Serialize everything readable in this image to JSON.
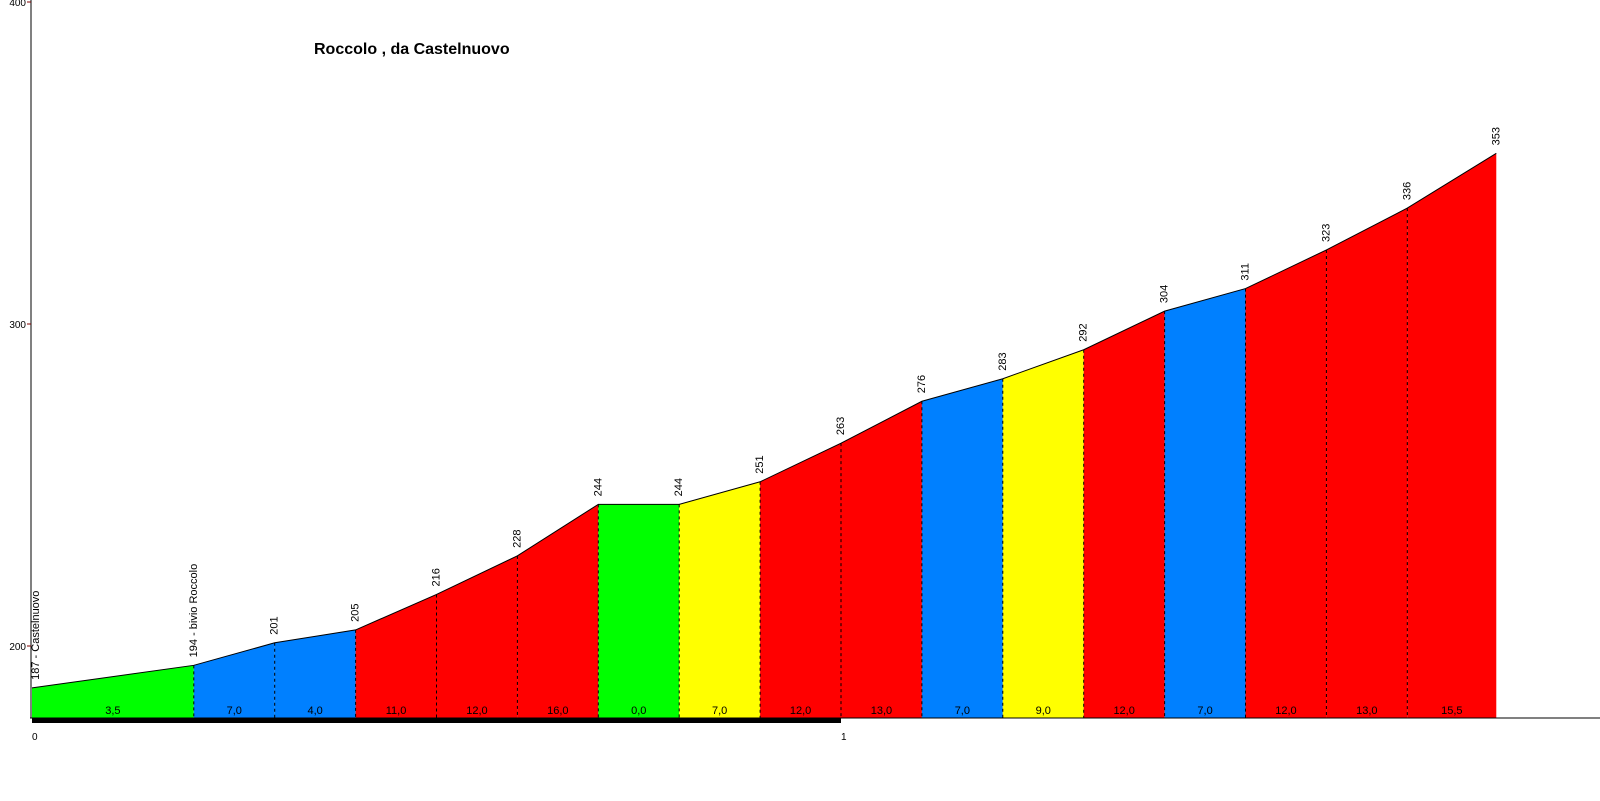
{
  "chart_data": {
    "type": "area",
    "title": "Roccolo , da Castelnuovo",
    "xlabel": "",
    "ylabel": "",
    "xlim": [
      0,
      1.9
    ],
    "ylim": [
      176,
      400
    ],
    "x_ticks": [
      "0",
      "1"
    ],
    "y_ticks": [
      "200",
      "300",
      "400"
    ],
    "grid": false,
    "legend": "none",
    "points": [
      {
        "x": 0.0,
        "elev": 187,
        "label": "187 - Castelnuovo"
      },
      {
        "x": 0.2,
        "elev": 194,
        "label": "194 - bivio Roccolo"
      },
      {
        "x": 0.3,
        "elev": 201,
        "label": "201"
      },
      {
        "x": 0.4,
        "elev": 205,
        "label": "205"
      },
      {
        "x": 0.5,
        "elev": 216,
        "label": "216"
      },
      {
        "x": 0.6,
        "elev": 228,
        "label": "228"
      },
      {
        "x": 0.7,
        "elev": 244,
        "label": "244"
      },
      {
        "x": 0.8,
        "elev": 244,
        "label": "244"
      },
      {
        "x": 0.9,
        "elev": 251,
        "label": "251"
      },
      {
        "x": 1.0,
        "elev": 263,
        "label": "263"
      },
      {
        "x": 1.1,
        "elev": 276,
        "label": "276"
      },
      {
        "x": 1.2,
        "elev": 283,
        "label": "283"
      },
      {
        "x": 1.3,
        "elev": 292,
        "label": "292"
      },
      {
        "x": 1.4,
        "elev": 304,
        "label": "304"
      },
      {
        "x": 1.5,
        "elev": 311,
        "label": "311"
      },
      {
        "x": 1.6,
        "elev": 323,
        "label": "323"
      },
      {
        "x": 1.7,
        "elev": 336,
        "label": "336"
      },
      {
        "x": 1.81,
        "elev": 353,
        "label": "353"
      }
    ],
    "segments": [
      {
        "grade": "3,5",
        "color": "#00ff00"
      },
      {
        "grade": "7,0",
        "color": "#0080ff"
      },
      {
        "grade": "4,0",
        "color": "#0080ff"
      },
      {
        "grade": "11,0",
        "color": "#ff0000"
      },
      {
        "grade": "12,0",
        "color": "#ff0000"
      },
      {
        "grade": "16,0",
        "color": "#ff0000"
      },
      {
        "grade": "0,0",
        "color": "#00ff00"
      },
      {
        "grade": "7,0",
        "color": "#ffff00"
      },
      {
        "grade": "12,0",
        "color": "#ff0000"
      },
      {
        "grade": "13,0",
        "color": "#ff0000"
      },
      {
        "grade": "7,0",
        "color": "#0080ff"
      },
      {
        "grade": "9,0",
        "color": "#ffff00"
      },
      {
        "grade": "12,0",
        "color": "#ff0000"
      },
      {
        "grade": "7,0",
        "color": "#0080ff"
      },
      {
        "grade": "12,0",
        "color": "#ff0000"
      },
      {
        "grade": "13,0",
        "color": "#ff0000"
      },
      {
        "grade": "15,5",
        "color": "#ff0000"
      }
    ],
    "colors": {
      "green": "#00ff00",
      "blue": "#0080ff",
      "yellow": "#ffff00",
      "red": "#ff0000",
      "axis": "#000000"
    }
  }
}
